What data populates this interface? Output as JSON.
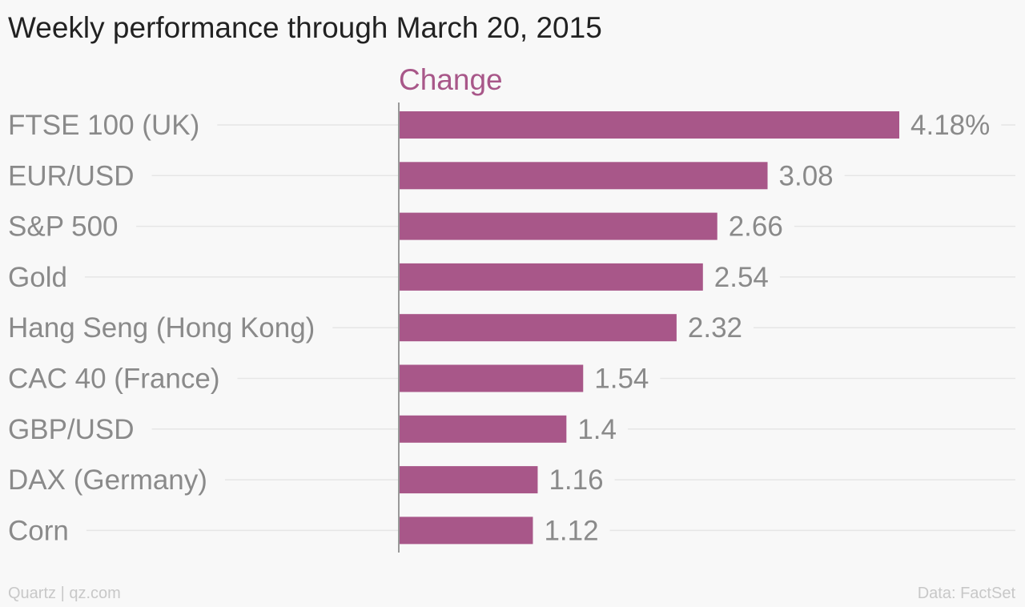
{
  "page": {
    "source": "Quartz | qz.com",
    "credit": "Data: FactSet"
  },
  "colors": {
    "bar": "#a85789",
    "series_label": "#a85789",
    "category_label": "#8a8a8a",
    "value_label": "#8a8a8a",
    "gridline": "#e6e6e6",
    "axis": "#999999"
  },
  "chart_data": {
    "type": "bar",
    "orientation": "horizontal",
    "title": "Weekly performance through March 20, 2015",
    "series": [
      {
        "name": "Change",
        "values": [
          4.18,
          3.08,
          2.66,
          2.54,
          2.32,
          1.54,
          1.4,
          1.16,
          1.12
        ],
        "value_labels": [
          "4.18%",
          "3.08",
          "2.66",
          "2.54",
          "2.32",
          "1.54",
          "1.4",
          "1.16",
          "1.12"
        ]
      }
    ],
    "categories": [
      "FTSE 100 (UK)",
      "EUR/USD",
      "S&P 500",
      "Gold",
      "Hang Seng (Hong Kong)",
      "CAC 40 (France)",
      "GBP/USD",
      "DAX (Germany)",
      "Corn"
    ],
    "xlim": [
      0,
      4.18
    ],
    "grid": true,
    "legend": "none"
  }
}
